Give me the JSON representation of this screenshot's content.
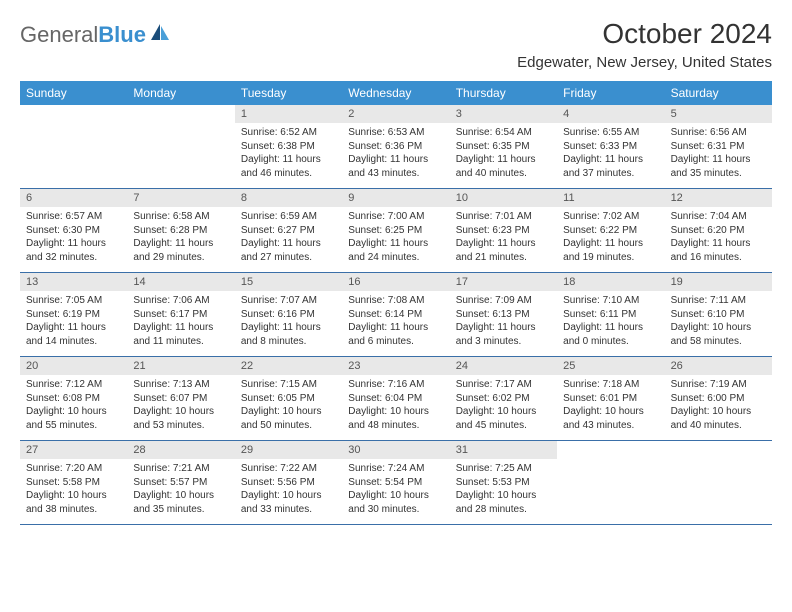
{
  "logo": {
    "textGray": "General",
    "textBlue": "Blue"
  },
  "title": "October 2024",
  "location": "Edgewater, New Jersey, United States",
  "colors": {
    "headerBg": "#3a8fcf",
    "headerText": "#ffffff",
    "dateBarBg": "#e8e8e8",
    "weekBorder": "#3a6fa8",
    "bodyText": "#333333",
    "sailDark": "#1a4d7a",
    "sailLight": "#4a9fd8"
  },
  "dayNames": [
    "Sunday",
    "Monday",
    "Tuesday",
    "Wednesday",
    "Thursday",
    "Friday",
    "Saturday"
  ],
  "weeks": [
    [
      {
        "date": "",
        "sunrise": "",
        "sunset": "",
        "daylight": ""
      },
      {
        "date": "",
        "sunrise": "",
        "sunset": "",
        "daylight": ""
      },
      {
        "date": "1",
        "sunrise": "Sunrise: 6:52 AM",
        "sunset": "Sunset: 6:38 PM",
        "daylight": "Daylight: 11 hours and 46 minutes."
      },
      {
        "date": "2",
        "sunrise": "Sunrise: 6:53 AM",
        "sunset": "Sunset: 6:36 PM",
        "daylight": "Daylight: 11 hours and 43 minutes."
      },
      {
        "date": "3",
        "sunrise": "Sunrise: 6:54 AM",
        "sunset": "Sunset: 6:35 PM",
        "daylight": "Daylight: 11 hours and 40 minutes."
      },
      {
        "date": "4",
        "sunrise": "Sunrise: 6:55 AM",
        "sunset": "Sunset: 6:33 PM",
        "daylight": "Daylight: 11 hours and 37 minutes."
      },
      {
        "date": "5",
        "sunrise": "Sunrise: 6:56 AM",
        "sunset": "Sunset: 6:31 PM",
        "daylight": "Daylight: 11 hours and 35 minutes."
      }
    ],
    [
      {
        "date": "6",
        "sunrise": "Sunrise: 6:57 AM",
        "sunset": "Sunset: 6:30 PM",
        "daylight": "Daylight: 11 hours and 32 minutes."
      },
      {
        "date": "7",
        "sunrise": "Sunrise: 6:58 AM",
        "sunset": "Sunset: 6:28 PM",
        "daylight": "Daylight: 11 hours and 29 minutes."
      },
      {
        "date": "8",
        "sunrise": "Sunrise: 6:59 AM",
        "sunset": "Sunset: 6:27 PM",
        "daylight": "Daylight: 11 hours and 27 minutes."
      },
      {
        "date": "9",
        "sunrise": "Sunrise: 7:00 AM",
        "sunset": "Sunset: 6:25 PM",
        "daylight": "Daylight: 11 hours and 24 minutes."
      },
      {
        "date": "10",
        "sunrise": "Sunrise: 7:01 AM",
        "sunset": "Sunset: 6:23 PM",
        "daylight": "Daylight: 11 hours and 21 minutes."
      },
      {
        "date": "11",
        "sunrise": "Sunrise: 7:02 AM",
        "sunset": "Sunset: 6:22 PM",
        "daylight": "Daylight: 11 hours and 19 minutes."
      },
      {
        "date": "12",
        "sunrise": "Sunrise: 7:04 AM",
        "sunset": "Sunset: 6:20 PM",
        "daylight": "Daylight: 11 hours and 16 minutes."
      }
    ],
    [
      {
        "date": "13",
        "sunrise": "Sunrise: 7:05 AM",
        "sunset": "Sunset: 6:19 PM",
        "daylight": "Daylight: 11 hours and 14 minutes."
      },
      {
        "date": "14",
        "sunrise": "Sunrise: 7:06 AM",
        "sunset": "Sunset: 6:17 PM",
        "daylight": "Daylight: 11 hours and 11 minutes."
      },
      {
        "date": "15",
        "sunrise": "Sunrise: 7:07 AM",
        "sunset": "Sunset: 6:16 PM",
        "daylight": "Daylight: 11 hours and 8 minutes."
      },
      {
        "date": "16",
        "sunrise": "Sunrise: 7:08 AM",
        "sunset": "Sunset: 6:14 PM",
        "daylight": "Daylight: 11 hours and 6 minutes."
      },
      {
        "date": "17",
        "sunrise": "Sunrise: 7:09 AM",
        "sunset": "Sunset: 6:13 PM",
        "daylight": "Daylight: 11 hours and 3 minutes."
      },
      {
        "date": "18",
        "sunrise": "Sunrise: 7:10 AM",
        "sunset": "Sunset: 6:11 PM",
        "daylight": "Daylight: 11 hours and 0 minutes."
      },
      {
        "date": "19",
        "sunrise": "Sunrise: 7:11 AM",
        "sunset": "Sunset: 6:10 PM",
        "daylight": "Daylight: 10 hours and 58 minutes."
      }
    ],
    [
      {
        "date": "20",
        "sunrise": "Sunrise: 7:12 AM",
        "sunset": "Sunset: 6:08 PM",
        "daylight": "Daylight: 10 hours and 55 minutes."
      },
      {
        "date": "21",
        "sunrise": "Sunrise: 7:13 AM",
        "sunset": "Sunset: 6:07 PM",
        "daylight": "Daylight: 10 hours and 53 minutes."
      },
      {
        "date": "22",
        "sunrise": "Sunrise: 7:15 AM",
        "sunset": "Sunset: 6:05 PM",
        "daylight": "Daylight: 10 hours and 50 minutes."
      },
      {
        "date": "23",
        "sunrise": "Sunrise: 7:16 AM",
        "sunset": "Sunset: 6:04 PM",
        "daylight": "Daylight: 10 hours and 48 minutes."
      },
      {
        "date": "24",
        "sunrise": "Sunrise: 7:17 AM",
        "sunset": "Sunset: 6:02 PM",
        "daylight": "Daylight: 10 hours and 45 minutes."
      },
      {
        "date": "25",
        "sunrise": "Sunrise: 7:18 AM",
        "sunset": "Sunset: 6:01 PM",
        "daylight": "Daylight: 10 hours and 43 minutes."
      },
      {
        "date": "26",
        "sunrise": "Sunrise: 7:19 AM",
        "sunset": "Sunset: 6:00 PM",
        "daylight": "Daylight: 10 hours and 40 minutes."
      }
    ],
    [
      {
        "date": "27",
        "sunrise": "Sunrise: 7:20 AM",
        "sunset": "Sunset: 5:58 PM",
        "daylight": "Daylight: 10 hours and 38 minutes."
      },
      {
        "date": "28",
        "sunrise": "Sunrise: 7:21 AM",
        "sunset": "Sunset: 5:57 PM",
        "daylight": "Daylight: 10 hours and 35 minutes."
      },
      {
        "date": "29",
        "sunrise": "Sunrise: 7:22 AM",
        "sunset": "Sunset: 5:56 PM",
        "daylight": "Daylight: 10 hours and 33 minutes."
      },
      {
        "date": "30",
        "sunrise": "Sunrise: 7:24 AM",
        "sunset": "Sunset: 5:54 PM",
        "daylight": "Daylight: 10 hours and 30 minutes."
      },
      {
        "date": "31",
        "sunrise": "Sunrise: 7:25 AM",
        "sunset": "Sunset: 5:53 PM",
        "daylight": "Daylight: 10 hours and 28 minutes."
      },
      {
        "date": "",
        "sunrise": "",
        "sunset": "",
        "daylight": ""
      },
      {
        "date": "",
        "sunrise": "",
        "sunset": "",
        "daylight": ""
      }
    ]
  ]
}
